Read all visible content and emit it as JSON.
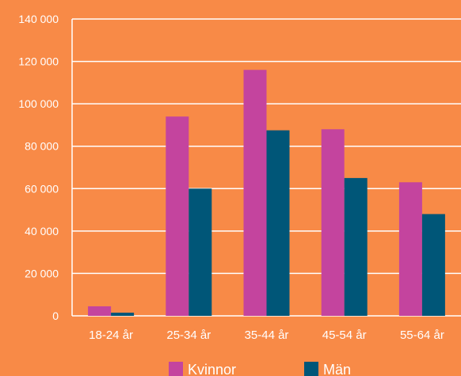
{
  "chart_data": {
    "type": "bar",
    "categories": [
      "18-24 år",
      "25-34 år",
      "35-44 år",
      "45-54 år",
      "55-64 år"
    ],
    "series": [
      {
        "name": "Kvinnor",
        "color": "#C4449E",
        "values": [
          4500,
          94000,
          116000,
          88000,
          63000
        ]
      },
      {
        "name": "Män",
        "color": "#005678",
        "values": [
          1500,
          60000,
          87500,
          65000,
          48000
        ]
      }
    ],
    "y_ticks": [
      "0",
      "20 000",
      "40 000",
      "60 000",
      "80 000",
      "100 000",
      "120 000",
      "140 000"
    ],
    "ylim": [
      0,
      140000
    ],
    "grid": true,
    "legend_position": "bottom",
    "colors": {
      "background": "#F88A47",
      "gridline": "#FFFFFF",
      "text": "#FFFFFF"
    }
  }
}
